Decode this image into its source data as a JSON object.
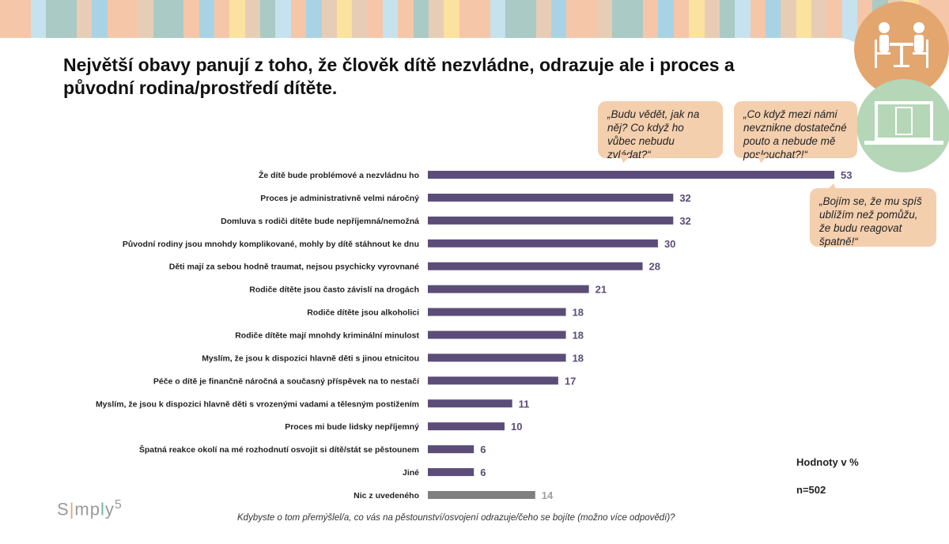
{
  "stripe_colors": [
    "#f6c6a9",
    "#a9cac5",
    "#a8d3e4",
    "#e8cdb6",
    "#f6c6a9",
    "#fbe29e",
    "#c5e2ee",
    "#e8cdb6",
    "#f6c6a9",
    "#a9cac5"
  ],
  "title": "Největší obavy panují z toho, že člověk dítě nezvládne, odrazuje ale i proces a původní rodina/prostředí dítěte.",
  "quotes": [
    "„Budu vědět, jak na něj? Co když ho vůbec nebudu zvládat?“",
    "„Co když mezi námi nevznikne dostatečné pouto a nebude mě poslouchat?!“",
    "„Bojím se, že mu spíš ublížím než pomůžu, že budu reagovat špatně!“"
  ],
  "notes": {
    "units": "Hodnoty v %",
    "n": "n=502"
  },
  "logo": "Simply5",
  "question": "Kdybyste o tom přemýšlel/a, co vás na pěstounství/osvojení odrazuje/čeho se bojíte (možno více odpovědí)?",
  "chart_data": {
    "type": "bar",
    "orientation": "horizontal",
    "xlabel": "",
    "ylabel": "",
    "xlim": [
      0,
      53
    ],
    "colors": {
      "main": "#5b4d78",
      "other": "#808080",
      "other_label": "#a0a0a0"
    },
    "categories": [
      "Že dítě bude problémové a nezvládnu ho",
      "Proces je administrativně velmi náročný",
      "Domluva s rodiči dítěte bude nepříjemná/nemožná",
      "Původní rodiny jsou mnohdy komplikované, mohly by dítě stáhnout ke dnu",
      "Děti mají za sebou hodně traumat, nejsou psychicky vyrovnané",
      "Rodiče dítěte jsou často závislí na drogách",
      "Rodiče dítěte jsou alkoholici",
      "Rodiče dítěte mají mnohdy kriminální minulost",
      "Myslím, že jsou k dispozici hlavně děti s jinou etnicitou",
      "Péče o dítě je finančně náročná a současný příspěvek na to nestačí",
      "Myslím, že jsou k dispozici hlavně děti s vrozenými vadami a tělesným postižením",
      "Proces mi bude lidsky nepříjemný",
      "Špatná reakce okolí na mé rozhodnutí osvojit si dítě/stát se pěstounem",
      "Jiné",
      "Nic z uvedeného"
    ],
    "values": [
      53,
      32,
      32,
      30,
      28,
      21,
      18,
      18,
      18,
      17,
      11,
      10,
      6,
      6,
      14
    ]
  }
}
